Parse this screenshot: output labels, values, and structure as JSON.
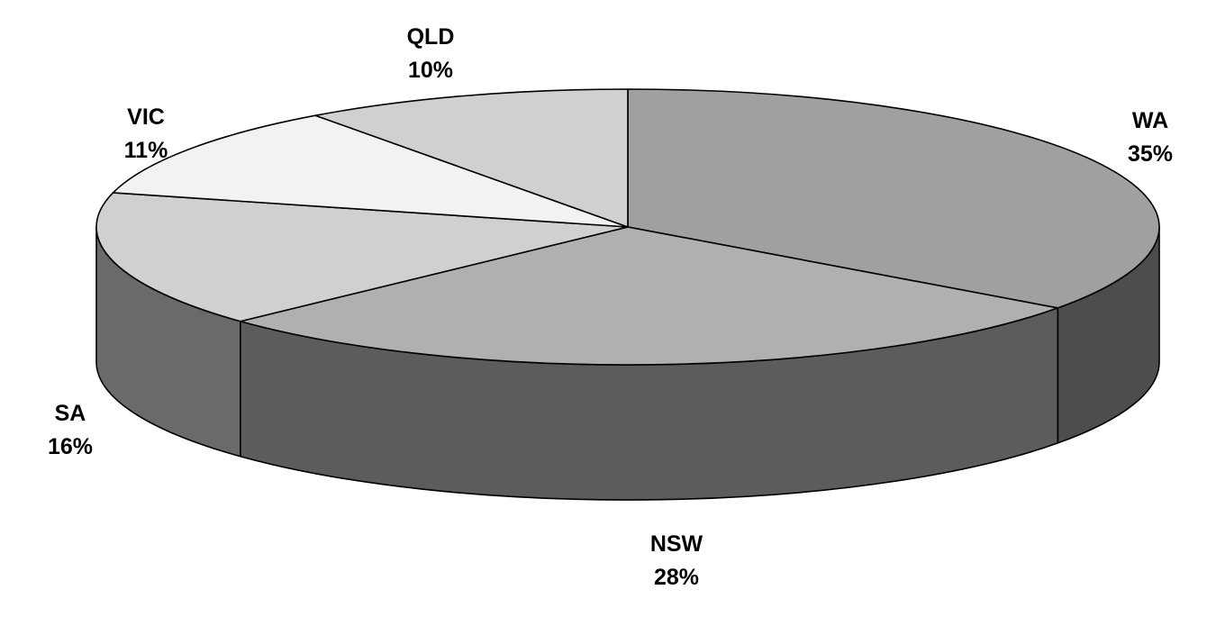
{
  "chart_data": {
    "type": "pie",
    "style": "3d",
    "labels": [
      "WA",
      "NSW",
      "SA",
      "VIC",
      "QLD"
    ],
    "values": [
      35,
      28,
      16,
      11,
      10
    ],
    "value_labels": [
      "35%",
      "28%",
      "16%",
      "11%",
      "10%"
    ],
    "colors": {
      "top": [
        "#a0a0a0",
        "#b0b0b0",
        "#d0d0d0",
        "#f2f2f2",
        "#d0d0d0"
      ],
      "side": [
        "#4d4d4d",
        "#5c5c5c",
        "#6a6a6a",
        "#7a7a7a",
        "#6a6a6a"
      ]
    },
    "legend": "none"
  }
}
